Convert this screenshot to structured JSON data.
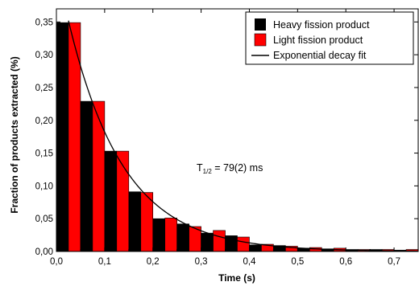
{
  "chart_data": {
    "type": "bar",
    "xlabel": "Time (s)",
    "ylabel": "Fraction of products extracted (%)",
    "xlim": [
      0.0,
      0.75
    ],
    "ylim": [
      0.0,
      0.37
    ],
    "x_ticks": [
      0.0,
      0.1,
      0.2,
      0.3,
      0.4,
      0.5,
      0.6,
      0.7
    ],
    "x_tick_labels": [
      "0,0",
      "0,1",
      "0,2",
      "0,3",
      "0,4",
      "0,5",
      "0,6",
      "0,7"
    ],
    "y_ticks": [
      0.0,
      0.05,
      0.1,
      0.15,
      0.2,
      0.25,
      0.3,
      0.35
    ],
    "y_tick_labels": [
      "0,00",
      "0,05",
      "0,10",
      "0,15",
      "0,20",
      "0,25",
      "0,30",
      "0,35"
    ],
    "bin_width": 0.05,
    "bin_starts": [
      0.0,
      0.05,
      0.1,
      0.15,
      0.2,
      0.25,
      0.3,
      0.35,
      0.4,
      0.45,
      0.5,
      0.55,
      0.6,
      0.65,
      0.7
    ],
    "series": [
      {
        "name": "Heavy fission product",
        "color": "#000000",
        "values": [
          0.349,
          0.229,
          0.153,
          0.091,
          0.05,
          0.042,
          0.028,
          0.024,
          0.01,
          0.009,
          0.005,
          0.004,
          0.003,
          0.003,
          0.002
        ]
      },
      {
        "name": "Light fission product",
        "color": "#ff0000",
        "values": [
          0.349,
          0.229,
          0.153,
          0.09,
          0.051,
          0.038,
          0.032,
          0.022,
          0.011,
          0.008,
          0.006,
          0.005,
          0.003,
          0.003,
          0.003
        ]
      }
    ],
    "fit": {
      "name": "Exponential decay fit",
      "color": "#000000",
      "x_start": 0.025,
      "y_start": 0.352,
      "half_life_s": 0.079
    },
    "annotation": {
      "main": "T",
      "sub": "1/2",
      "rest": " = 79(2) ms"
    },
    "legend_position": "top-right",
    "grid": false
  }
}
